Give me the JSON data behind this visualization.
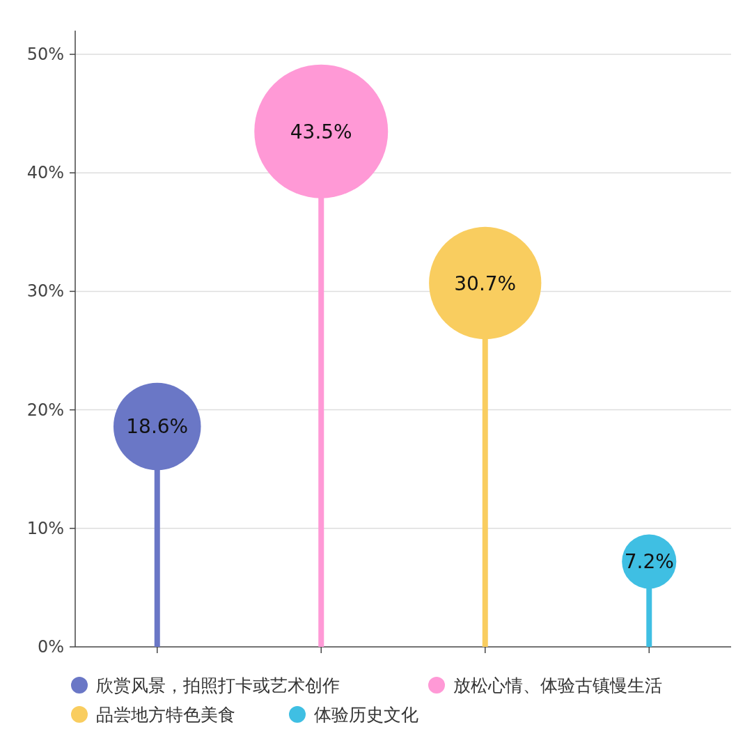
{
  "chart_data": {
    "type": "lollipop",
    "categories": [
      null,
      null,
      null,
      null
    ],
    "series": [
      {
        "name": "欣赏风景，拍照打卡或艺术创作",
        "color": "#6a77c6",
        "values": [
          18.6,
          null,
          null,
          null
        ]
      },
      {
        "name": "放松心情、体验古镇慢生活",
        "color": "#ff99d6",
        "values": [
          null,
          43.5,
          null,
          null
        ]
      },
      {
        "name": "品尝地方特色美食",
        "color": "#f9cd5f",
        "values": [
          null,
          null,
          30.7,
          null
        ]
      },
      {
        "name": "体验历史文化",
        "color": "#3fbfe3",
        "values": [
          null,
          null,
          null,
          7.2
        ]
      }
    ],
    "ylim": [
      0,
      52
    ],
    "yticks": [
      {
        "value": 0,
        "label": "0%"
      },
      {
        "value": 10,
        "label": "10%"
      },
      {
        "value": 20,
        "label": "20%"
      },
      {
        "value": 30,
        "label": "30%"
      },
      {
        "value": 40,
        "label": "40%"
      },
      {
        "value": 50,
        "label": "50%"
      }
    ],
    "grid": "y",
    "legend": "bottom",
    "value_labels": [
      "18.6%",
      "43.5%",
      "30.7%",
      "7.2%"
    ]
  }
}
